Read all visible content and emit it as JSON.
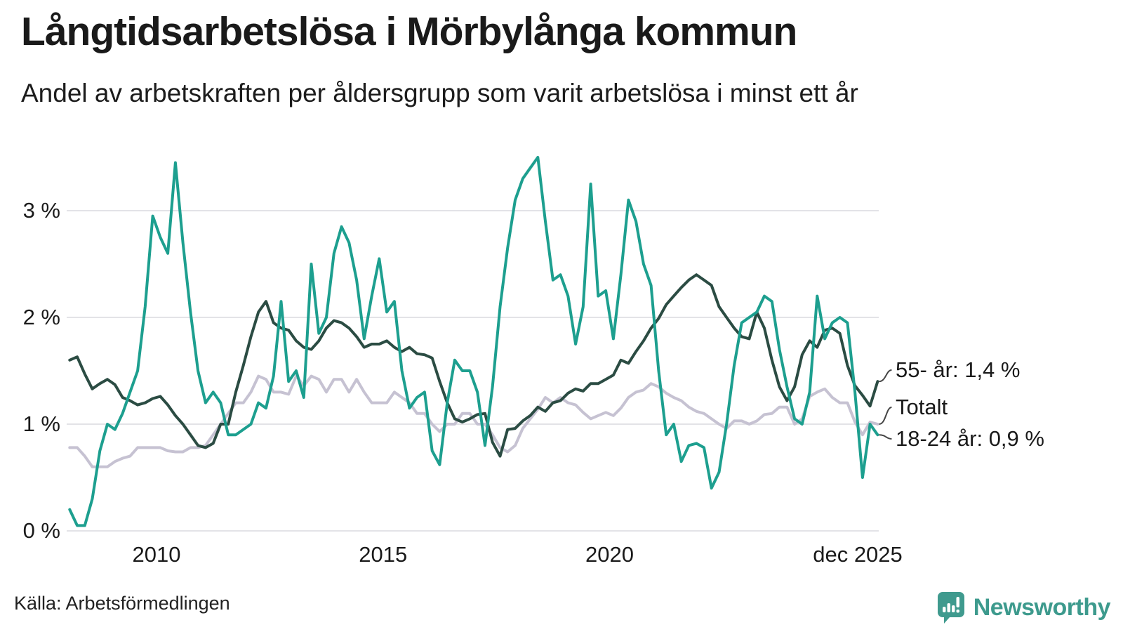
{
  "title": "Långtidsarbetslösa i Mörbylånga kommun",
  "subtitle": "Andel av arbetskraften per åldersgrupp som varit arbetslösa i minst ett år",
  "source": "Källa: Arbetsförmedlingen",
  "branding": {
    "name": "Newsworthy",
    "logo_icon": "speech-bubble-bar-chart-icon",
    "logo_color": "#3F9A8E"
  },
  "colors": {
    "teal": "#1D9F8F",
    "dark_green": "#2B4C43",
    "gray": "#C6C2D2",
    "gridline": "#E3E3E7",
    "connector": "#444444",
    "text": "#1A1A1A"
  },
  "chart_data": {
    "type": "line",
    "title": "Långtidsarbetslösa i Mörbylånga kommun",
    "subtitle": "Andel av arbetskraften per åldersgrupp som varit arbetslösa i minst ett år",
    "unit": "%",
    "x_start": "2008-02",
    "x_step_months": 2,
    "x_end": "2025-12",
    "ylim": [
      0,
      3.6
    ],
    "grid": true,
    "legend_position": "right-end-labels",
    "yticks": [
      {
        "value": 0,
        "label": "0 %"
      },
      {
        "value": 1,
        "label": "1 %"
      },
      {
        "value": 2,
        "label": "2 %"
      },
      {
        "value": 3,
        "label": "3 %"
      }
    ],
    "xticks": [
      {
        "year": 2010,
        "label": "2010"
      },
      {
        "year": 2015,
        "label": "2015"
      },
      {
        "year": 2020,
        "label": "2020"
      },
      {
        "year": 2025.92,
        "label": "dec 2025"
      }
    ],
    "series": [
      {
        "name": "Totalt",
        "color_key": "gray",
        "end_label": "Totalt",
        "last_value_label": "1,0 %",
        "values": [
          0.78,
          0.78,
          0.7,
          0.6,
          0.6,
          0.6,
          0.65,
          0.68,
          0.7,
          0.78,
          0.78,
          0.78,
          0.78,
          0.75,
          0.74,
          0.74,
          0.78,
          0.78,
          0.8,
          0.9,
          1.0,
          1.1,
          1.2,
          1.2,
          1.3,
          1.45,
          1.42,
          1.3,
          1.3,
          1.28,
          1.45,
          1.36,
          1.45,
          1.42,
          1.3,
          1.42,
          1.42,
          1.3,
          1.42,
          1.3,
          1.2,
          1.2,
          1.2,
          1.3,
          1.25,
          1.2,
          1.1,
          1.1,
          1.0,
          0.93,
          1.0,
          1.0,
          1.1,
          1.1,
          1.0,
          1.0,
          0.9,
          0.78,
          0.74,
          0.8,
          0.96,
          1.05,
          1.14,
          1.25,
          1.2,
          1.25,
          1.2,
          1.18,
          1.11,
          1.05,
          1.08,
          1.11,
          1.08,
          1.15,
          1.25,
          1.3,
          1.32,
          1.38,
          1.35,
          1.29,
          1.25,
          1.22,
          1.16,
          1.12,
          1.1,
          1.05,
          1.0,
          0.96,
          1.03,
          1.03,
          1.0,
          1.03,
          1.09,
          1.1,
          1.16,
          1.16,
          1.0,
          1.05,
          1.26,
          1.3,
          1.33,
          1.25,
          1.2,
          1.2,
          1.02,
          0.9,
          1.02,
          1.0
        ]
      },
      {
        "name": "55- år",
        "color_key": "dark_green",
        "end_label": "55- år: 1,4 %",
        "last_value_label": "1,4 %",
        "values": [
          1.6,
          1.63,
          1.47,
          1.33,
          1.38,
          1.42,
          1.37,
          1.25,
          1.22,
          1.18,
          1.2,
          1.24,
          1.26,
          1.18,
          1.08,
          1.0,
          0.9,
          0.8,
          0.78,
          0.82,
          1.0,
          1.0,
          1.3,
          1.55,
          1.82,
          2.05,
          2.15,
          1.95,
          1.9,
          1.88,
          1.78,
          1.72,
          1.7,
          1.78,
          1.9,
          1.97,
          1.95,
          1.9,
          1.82,
          1.72,
          1.75,
          1.75,
          1.78,
          1.72,
          1.68,
          1.72,
          1.66,
          1.65,
          1.62,
          1.4,
          1.2,
          1.05,
          1.02,
          1.05,
          1.09,
          1.1,
          0.83,
          0.7,
          0.95,
          0.96,
          1.03,
          1.08,
          1.16,
          1.12,
          1.2,
          1.22,
          1.29,
          1.33,
          1.31,
          1.38,
          1.38,
          1.42,
          1.46,
          1.6,
          1.57,
          1.68,
          1.78,
          1.9,
          1.99,
          2.12,
          2.2,
          2.28,
          2.35,
          2.4,
          2.35,
          2.3,
          2.1,
          2.0,
          1.9,
          1.82,
          1.8,
          2.05,
          1.9,
          1.6,
          1.35,
          1.22,
          1.35,
          1.65,
          1.78,
          1.72,
          1.88,
          1.9,
          1.85,
          1.55,
          1.36,
          1.27,
          1.17,
          1.4
        ]
      },
      {
        "name": "18-24 år",
        "color_key": "teal",
        "end_label": "18-24 år: 0,9 %",
        "last_value_label": "0,9 %",
        "values": [
          0.2,
          0.05,
          0.05,
          0.3,
          0.75,
          1.0,
          0.95,
          1.1,
          1.3,
          1.5,
          2.1,
          2.95,
          2.75,
          2.6,
          3.45,
          2.7,
          2.05,
          1.5,
          1.2,
          1.3,
          1.2,
          0.9,
          0.9,
          0.95,
          1.0,
          1.2,
          1.15,
          1.45,
          2.15,
          1.4,
          1.5,
          1.25,
          2.5,
          1.85,
          2.0,
          2.6,
          2.85,
          2.7,
          2.35,
          1.8,
          2.2,
          2.55,
          2.05,
          2.15,
          1.5,
          1.15,
          1.25,
          1.3,
          0.75,
          0.62,
          1.2,
          1.6,
          1.5,
          1.5,
          1.3,
          0.8,
          1.35,
          2.1,
          2.65,
          3.1,
          3.3,
          3.4,
          3.5,
          2.9,
          2.35,
          2.4,
          2.2,
          1.75,
          2.1,
          3.25,
          2.2,
          2.25,
          1.8,
          2.4,
          3.1,
          2.9,
          2.5,
          2.3,
          1.5,
          0.9,
          1.0,
          0.65,
          0.8,
          0.82,
          0.78,
          0.4,
          0.55,
          1.0,
          1.55,
          1.95,
          2.0,
          2.05,
          2.2,
          2.15,
          1.7,
          1.35,
          1.05,
          1.0,
          1.3,
          2.2,
          1.8,
          1.95,
          2.0,
          1.95,
          1.3,
          0.5,
          1.0,
          0.9
        ]
      }
    ]
  }
}
